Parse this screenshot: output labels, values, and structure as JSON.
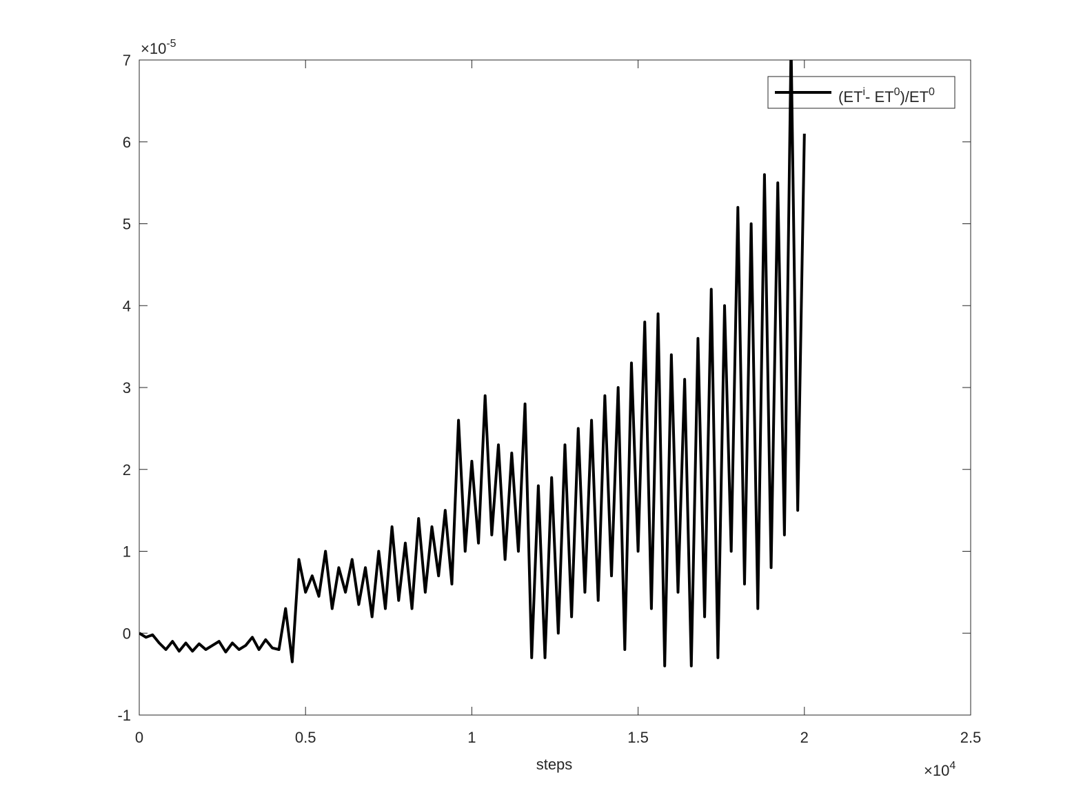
{
  "chart_data": {
    "type": "line",
    "x_label": "steps",
    "x_scale_label": {
      "base": "×10",
      "exponent": "4"
    },
    "y_scale_label": {
      "base": "×10",
      "exponent": "-5"
    },
    "xlim": [
      0,
      2.5
    ],
    "xticks": [
      0,
      0.5,
      1,
      1.5,
      2,
      2.5
    ],
    "ylim": [
      -1,
      7
    ],
    "yticks": [
      -1,
      0,
      1,
      2,
      3,
      4,
      5,
      6,
      7
    ],
    "grid": false,
    "legend": "northeast",
    "x": [
      0,
      0.02,
      0.04,
      0.06,
      0.08,
      0.1,
      0.12,
      0.14,
      0.16,
      0.18,
      0.2,
      0.22,
      0.24,
      0.26,
      0.28,
      0.3,
      0.32,
      0.34,
      0.36,
      0.38,
      0.4,
      0.42,
      0.44,
      0.46,
      0.48,
      0.5,
      0.52,
      0.54,
      0.56,
      0.58,
      0.6,
      0.62,
      0.64,
      0.66,
      0.68,
      0.7,
      0.72,
      0.74,
      0.76,
      0.78,
      0.8,
      0.82,
      0.84,
      0.86,
      0.88,
      0.9,
      0.92,
      0.94,
      0.96,
      0.98,
      1,
      1.02,
      1.04,
      1.06,
      1.08,
      1.1,
      1.12,
      1.14,
      1.16,
      1.18,
      1.2,
      1.22,
      1.24,
      1.26,
      1.28,
      1.3,
      1.32,
      1.34,
      1.36,
      1.38,
      1.4,
      1.42,
      1.44,
      1.46,
      1.48,
      1.5,
      1.52,
      1.54,
      1.56,
      1.58,
      1.6,
      1.62,
      1.64,
      1.66,
      1.68,
      1.7,
      1.72,
      1.74,
      1.76,
      1.78,
      1.8,
      1.82,
      1.84,
      1.86,
      1.88,
      1.9,
      1.92,
      1.94,
      1.96,
      1.98,
      2
    ],
    "series": [
      {
        "name": [
          {
            "text": "(ET"
          },
          {
            "text": "i",
            "sup": true
          },
          {
            "text": "- ET"
          },
          {
            "text": "0",
            "sup": true
          },
          {
            "text": ")/ET"
          },
          {
            "text": "0",
            "sup": true
          }
        ],
        "color": "#000000",
        "values": [
          0,
          -0.05,
          -0.02,
          -0.12,
          -0.2,
          -0.1,
          -0.22,
          -0.12,
          -0.22,
          -0.13,
          -0.2,
          -0.15,
          -0.1,
          -0.23,
          -0.12,
          -0.2,
          -0.15,
          -0.05,
          -0.2,
          -0.08,
          -0.18,
          -0.2,
          0.3,
          -0.35,
          0.9,
          0.5,
          0.7,
          0.45,
          1.0,
          0.3,
          0.8,
          0.5,
          0.9,
          0.35,
          0.8,
          0.2,
          1.0,
          0.3,
          1.3,
          0.4,
          1.1,
          0.3,
          1.4,
          0.5,
          1.3,
          0.7,
          1.5,
          0.6,
          2.6,
          1.0,
          2.1,
          1.1,
          2.9,
          1.2,
          2.3,
          0.9,
          2.2,
          1.0,
          2.8,
          -0.3,
          1.8,
          -0.3,
          1.9,
          0.0,
          2.3,
          0.2,
          2.5,
          0.5,
          2.6,
          0.4,
          2.9,
          0.7,
          3.0,
          -0.2,
          3.3,
          1.0,
          3.8,
          0.3,
          3.9,
          -0.4,
          3.4,
          0.5,
          3.1,
          -0.4,
          3.6,
          0.2,
          4.2,
          -0.3,
          4.0,
          1.0,
          5.2,
          0.6,
          5.0,
          0.3,
          5.6,
          0.8,
          5.5,
          1.2,
          7.2,
          1.5,
          6.1
        ]
      }
    ]
  }
}
